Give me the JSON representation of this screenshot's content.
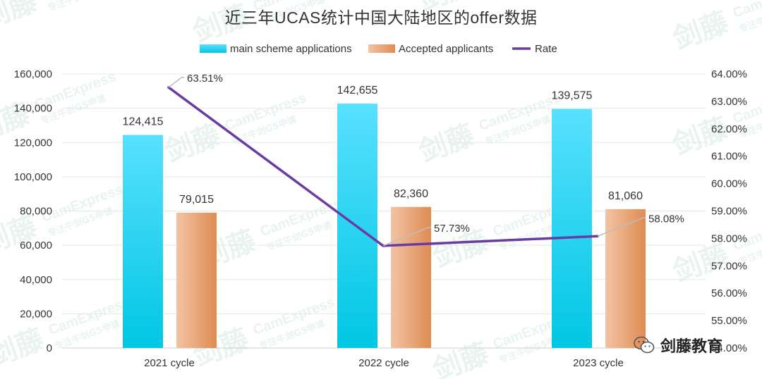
{
  "watermark": {
    "brand": "剑藤",
    "en": "CamExpress",
    "sub": "专注牛剑G5申请"
  },
  "badge": {
    "text": "剑藤教育",
    "icon": "wechat-icon"
  },
  "colors": {
    "main_top": "#58e0ff",
    "main_bottom": "#00c7e3",
    "acc_left": "#f2c3a4",
    "acc_right": "#e08c52",
    "rate": "#6a3ba0",
    "leader": "#bdbdbd",
    "grid": "#e8e8e8"
  },
  "chart_data": {
    "type": "bar",
    "title": "近三年UCAS统计中国大陆地区的offer数据",
    "categories": [
      "2021 cycle",
      "2022 cycle",
      "2023 cycle"
    ],
    "series": [
      {
        "name": "main scheme applications",
        "type": "bar",
        "values": [
          124415,
          142655,
          139575
        ],
        "labels": [
          "124,415",
          "142,655",
          "139,575"
        ]
      },
      {
        "name": "Accepted applicants",
        "type": "bar",
        "values": [
          79015,
          82360,
          81060
        ],
        "labels": [
          "79,015",
          "82,360",
          "81,060"
        ]
      },
      {
        "name": "Rate",
        "type": "line",
        "axis": "right",
        "values": [
          63.51,
          57.73,
          58.08
        ],
        "labels": [
          "63.51%",
          "57.73%",
          "58.08%"
        ]
      }
    ],
    "y_left": {
      "min": 0,
      "max": 160000,
      "step": 20000,
      "ticks": [
        "0",
        "20,000",
        "40,000",
        "60,000",
        "80,000",
        "100,000",
        "120,000",
        "140,000",
        "160,000"
      ]
    },
    "y_right": {
      "min": 54,
      "max": 64,
      "step": 1,
      "ticks": [
        "54.00%",
        "55.00%",
        "56.00%",
        "57.00%",
        "58.00%",
        "59.00%",
        "60.00%",
        "61.00%",
        "62.00%",
        "63.00%",
        "64.00%"
      ]
    },
    "legend_position": "top",
    "grid": true
  }
}
